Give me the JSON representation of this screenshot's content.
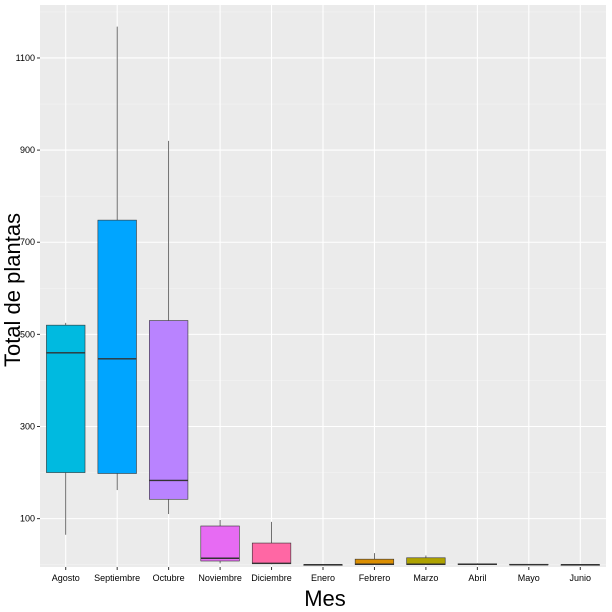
{
  "chart_data": {
    "type": "boxplot",
    "title": "",
    "xlabel": "Mes",
    "ylabel": "Total de plantas",
    "ylim": [
      -5,
      1215
    ],
    "y_ticks": [
      100,
      300,
      500,
      700,
      900,
      1100
    ],
    "y_tick_labels": [
      "100",
      "300",
      "500",
      "700",
      "900",
      "1100"
    ],
    "grid": true,
    "legend": "none",
    "categories": [
      "Agosto",
      "Septiembre",
      "Octubre",
      "Noviembre",
      "Diciembre",
      "Enero",
      "Febrero",
      "Marzo",
      "Abril",
      "Mayo",
      "Junio"
    ],
    "boxes": [
      {
        "category": "Agosto",
        "min": 65,
        "q1": 200,
        "median": 460,
        "q3": 520,
        "max": 525,
        "color": "#00BAE0"
      },
      {
        "category": "Septiembre",
        "min": 162,
        "q1": 198,
        "median": 447,
        "q3": 748,
        "max": 1168,
        "color": "#00A5FF"
      },
      {
        "category": "Octubre",
        "min": 110,
        "q1": 142,
        "median": 183,
        "q3": 530,
        "max": 920,
        "color": "#B983FF"
      },
      {
        "category": "Noviembre",
        "min": 3,
        "q1": 8,
        "median": 14,
        "q3": 84,
        "max": 97,
        "color": "#E76BF3"
      },
      {
        "category": "Diciembre",
        "min": 1,
        "q1": 2,
        "median": 3,
        "q3": 47,
        "max": 93,
        "color": "#FF67A4"
      },
      {
        "category": "Enero",
        "min": 0,
        "q1": 0,
        "median": 0,
        "q3": 0,
        "max": 0,
        "color": "#F8766D"
      },
      {
        "category": "Febrero",
        "min": 0,
        "q1": 0,
        "median": 1,
        "q3": 12,
        "max": 25,
        "color": "#DB8E00"
      },
      {
        "category": "Marzo",
        "min": 0,
        "q1": 0,
        "median": 1,
        "q3": 15,
        "max": 20,
        "color": "#AEA200"
      },
      {
        "category": "Abril",
        "min": 0,
        "q1": 0,
        "median": 1,
        "q3": 2,
        "max": 3,
        "color": "#64B200"
      },
      {
        "category": "Mayo",
        "min": 0,
        "q1": 0,
        "median": 0,
        "q3": 1,
        "max": 1,
        "color": "#00BD5C"
      },
      {
        "category": "Junio",
        "min": 0,
        "q1": 0,
        "median": 0,
        "q3": 0,
        "max": 0,
        "color": "#00C1A7"
      }
    ]
  },
  "colors": {
    "panel_background": "#EBEBEB",
    "grid_major": "#FFFFFF",
    "grid_minor": "#F4F4F4",
    "box_outline": "#333333",
    "whisker": "#4D4D4D"
  }
}
